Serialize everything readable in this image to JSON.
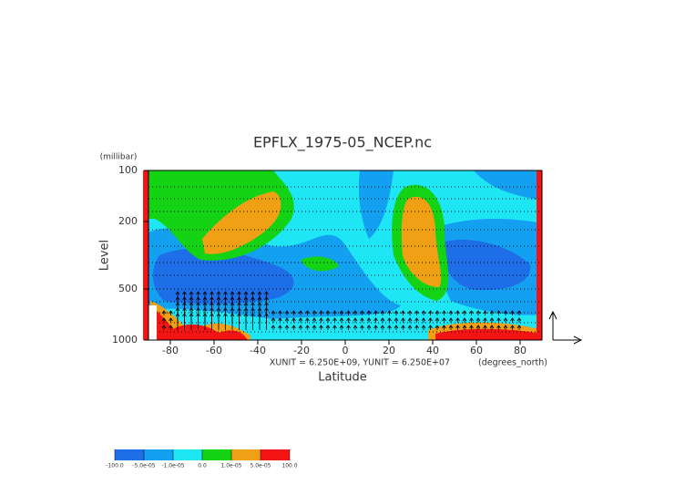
{
  "chart_data": {
    "type": "contour",
    "title": "EPFLX_1975-05_NCEP.nc",
    "x_label": "Latitude",
    "y_label": "Level",
    "y_unit_label": "(millibar)",
    "x_unit_label": "(degrees_north)",
    "annotation": "XUNIT = 6.250E+09, YUNIT = 6.250E+07",
    "xlim": [
      -90,
      90
    ],
    "xticks": [
      -80,
      -60,
      -40,
      -20,
      0,
      20,
      40,
      60,
      80
    ],
    "ylim": [
      1000,
      100
    ],
    "yticks": [
      100,
      200,
      500,
      1000
    ],
    "log_y": true,
    "colorbar": {
      "levels": [
        {
          "value": -100,
          "label": "-100.0"
        },
        {
          "value": -5e-05,
          "label": "-5.0e-05"
        },
        {
          "value": -1e-05,
          "label": "-1.0e-05"
        },
        {
          "value": 0,
          "label": "0.0"
        },
        {
          "value": 1e-05,
          "label": "1.0e-05"
        },
        {
          "value": 5e-05,
          "label": "5.0e-05"
        },
        {
          "value": 100,
          "label": "100.0"
        }
      ],
      "colors": [
        "#1e6ee8",
        "#14a0f0",
        "#1ee6f5",
        "#14d214",
        "#f0a014",
        "#f51414"
      ]
    }
  }
}
